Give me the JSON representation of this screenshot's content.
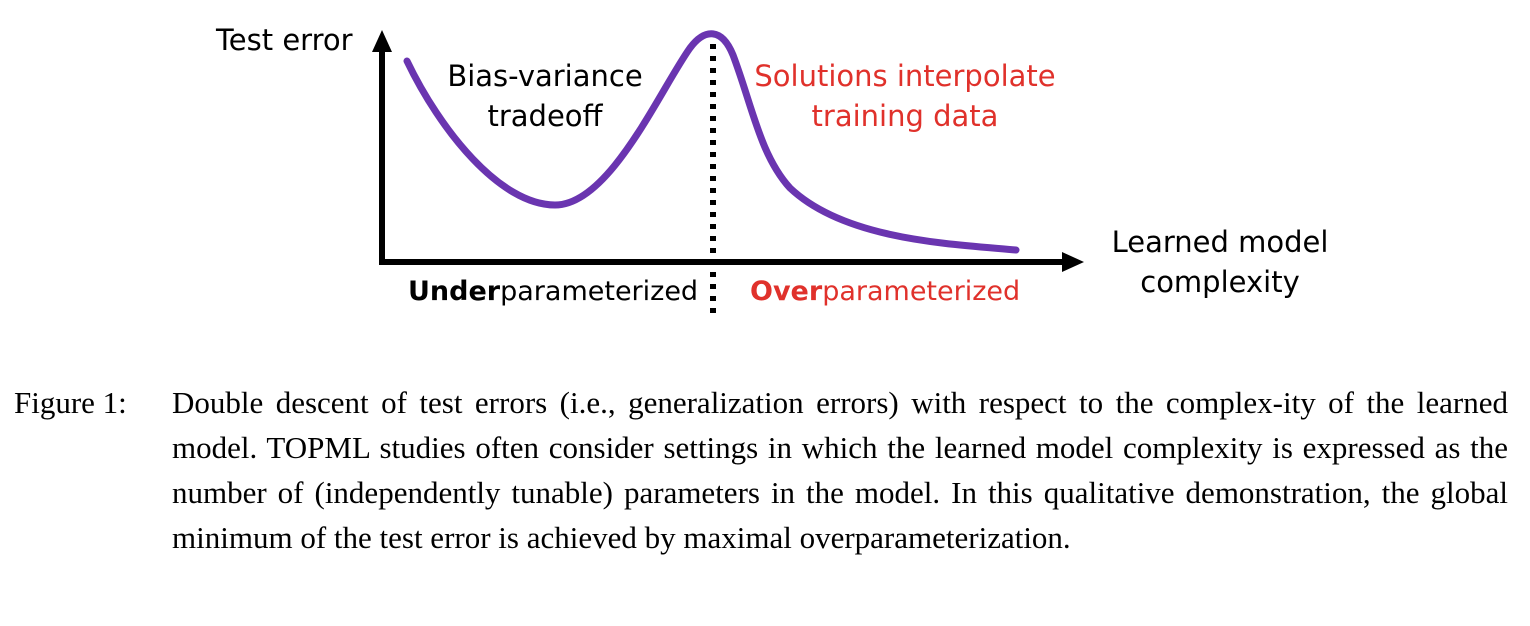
{
  "figure": {
    "y_axis_label": "Test error",
    "x_axis_label_line1": "Learned model",
    "x_axis_label_line2": "complexity",
    "left_annotation_line1": "Bias-variance",
    "left_annotation_line2": "tradeoff",
    "right_annotation_line1": "Solutions interpolate",
    "right_annotation_line2": "training data",
    "under_bold": "Under",
    "under_rest": "parameterized",
    "over_bold": "Over",
    "over_rest": "parameterized",
    "colors": {
      "curve": "#6a35b0",
      "accent_red": "#e0312b",
      "axis": "#000000",
      "text": "#000000"
    }
  },
  "caption": {
    "label": "Figure 1:",
    "text": "Double descent of test errors (i.e., generalization errors) with respect to the complex-ity of the learned model. TOPML studies often consider settings in which the learned model complexity is expressed as the number of (independently tunable) parameters in the model. In this qualitative demonstration, the global minimum of the test error is achieved by maximal overparameterization."
  }
}
